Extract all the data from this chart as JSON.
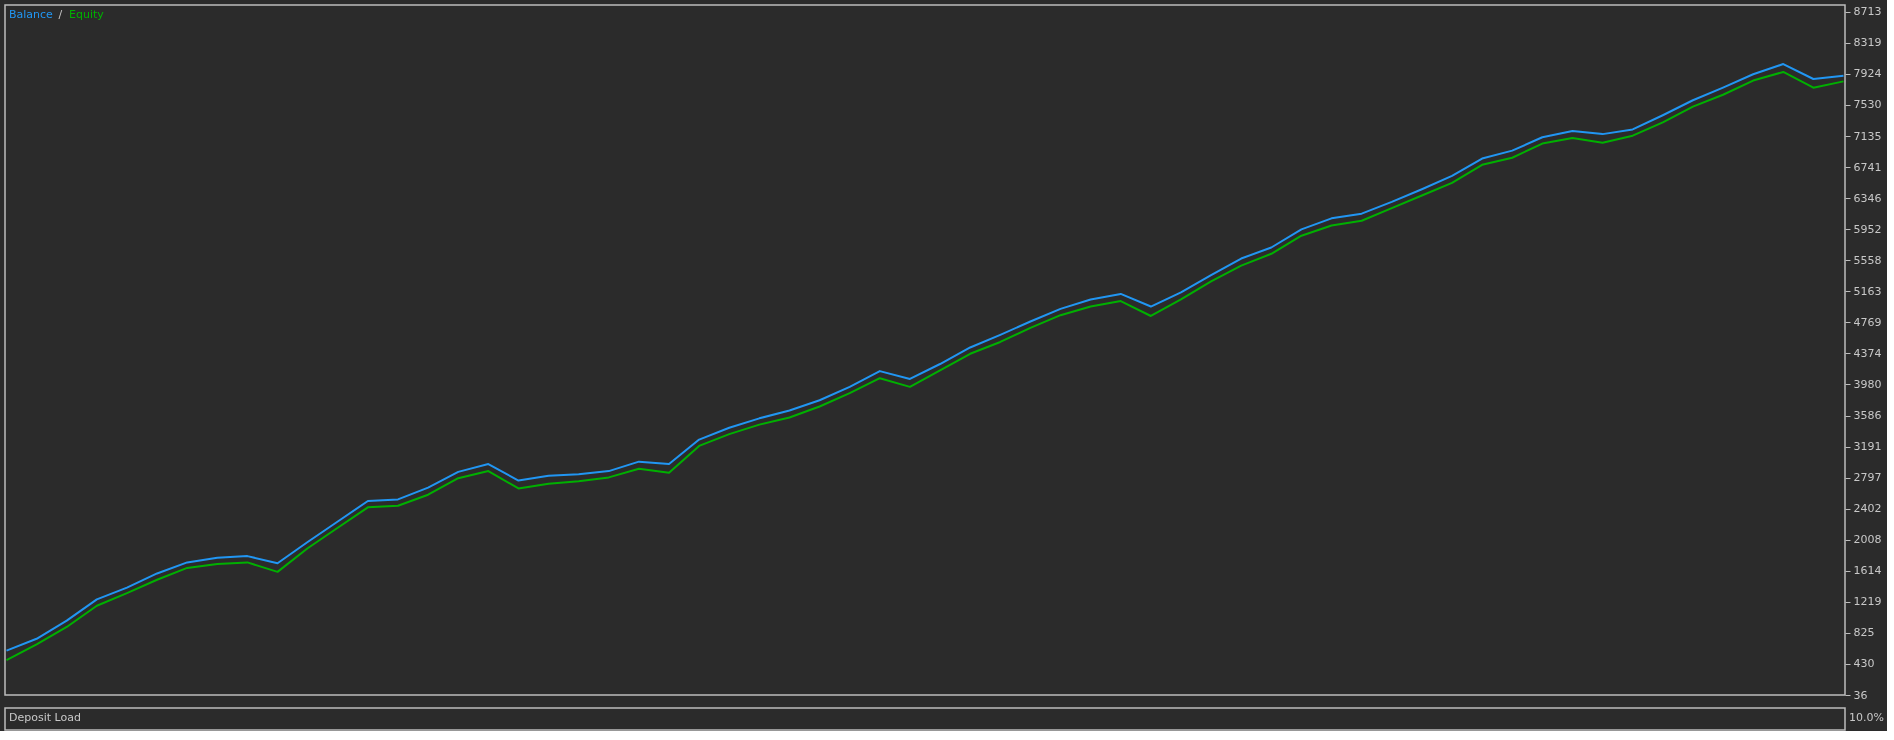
{
  "chart_data": [
    {
      "type": "line",
      "legend": "top left",
      "marker": "none",
      "line_style": "solid",
      "grid": false,
      "tick_labels": "y",
      "annotations": [
        "/"
      ],
      "categories": [
        null,
        null,
        null,
        null,
        null,
        null,
        null,
        null,
        null,
        null,
        null,
        null,
        null,
        null,
        null,
        null,
        null,
        null,
        null,
        null,
        null,
        null,
        null,
        null,
        null,
        null,
        null,
        null,
        null,
        null,
        null,
        null,
        null,
        null,
        null,
        null,
        null,
        null,
        null,
        null,
        null,
        null,
        null,
        null,
        null,
        null,
        null,
        null,
        null,
        null,
        null,
        null,
        null,
        null,
        null,
        null,
        null,
        null,
        null,
        null,
        null,
        null
      ],
      "ylim": [
        36,
        8800
      ],
      "yticks": [
        36,
        430,
        825,
        1219,
        1614,
        2008,
        2402,
        2797,
        3191,
        3586,
        3980,
        4374,
        4769,
        5163,
        5558,
        5952,
        6346,
        6741,
        7135,
        7530,
        7924,
        8319,
        8713
      ],
      "series": [
        {
          "name": "Balance",
          "color": "#2196f3",
          "values": [
            600,
            750,
            980,
            1250,
            1400,
            1580,
            1720,
            1780,
            1800,
            1710,
            1980,
            2240,
            2500,
            2520,
            2670,
            2870,
            2970,
            2760,
            2820,
            2840,
            2880,
            3000,
            2970,
            3280,
            3430,
            3550,
            3650,
            3780,
            3950,
            4150,
            4050,
            4240,
            4450,
            4610,
            4780,
            4940,
            5060,
            5130,
            4970,
            5150,
            5370,
            5580,
            5720,
            5950,
            6090,
            6150,
            6300,
            6460,
            6630,
            6850,
            6950,
            7120,
            7200,
            7160,
            7220,
            7400,
            7590,
            7750,
            7920,
            8050,
            7860,
            7900
          ]
        },
        {
          "name": "Equity",
          "color": "#00b000",
          "values": [
            480,
            680,
            900,
            1170,
            1330,
            1500,
            1650,
            1700,
            1720,
            1600,
            1900,
            2160,
            2420,
            2440,
            2580,
            2790,
            2880,
            2660,
            2720,
            2750,
            2800,
            2910,
            2860,
            3200,
            3350,
            3470,
            3560,
            3700,
            3870,
            4060,
            3950,
            4160,
            4370,
            4520,
            4700,
            4860,
            4970,
            5040,
            4850,
            5060,
            5290,
            5490,
            5640,
            5870,
            6000,
            6060,
            6220,
            6380,
            6540,
            6770,
            6860,
            7040,
            7110,
            7050,
            7140,
            7310,
            7510,
            7660,
            7840,
            7950,
            7750,
            7830
          ]
        }
      ]
    },
    {
      "type": "other",
      "title": "Deposit Load",
      "annotations": [
        "10.0%"
      ]
    }
  ]
}
